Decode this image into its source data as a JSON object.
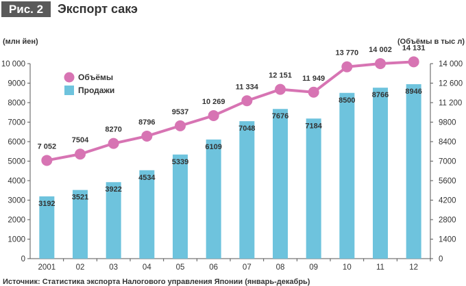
{
  "figure": {
    "badge": "Рис. 2",
    "title": "Экспорт сакэ"
  },
  "colors": {
    "bar": "#6ec3dd",
    "line": "#d774b3",
    "axis": "#555555",
    "text": "#333333"
  },
  "chart_data": {
    "type": "bar+line",
    "categories": [
      "2001",
      "02",
      "03",
      "04",
      "05",
      "06",
      "07",
      "08",
      "09",
      "10",
      "11",
      "12"
    ],
    "series": [
      {
        "name": "Продажи",
        "type": "bar",
        "axis": "left",
        "values": [
          3192,
          3521,
          3922,
          4534,
          5339,
          6109,
          7048,
          7676,
          7184,
          8500,
          8766,
          8946
        ],
        "labels": [
          "3192",
          "3521",
          "3922",
          "4534",
          "5339",
          "6109",
          "7048",
          "7676",
          "7184",
          "8500",
          "8766",
          "8946"
        ]
      },
      {
        "name": "Объёмы",
        "type": "line",
        "axis": "right",
        "values": [
          7052,
          7504,
          8270,
          8796,
          9537,
          10269,
          11334,
          12151,
          11949,
          13770,
          14002,
          14131
        ],
        "labels": [
          "7 052",
          "7504",
          "8270",
          "8796",
          "9537",
          "10 269",
          "11 334",
          "12 151",
          "11 949",
          "13 770",
          "14 002",
          "14 131"
        ]
      }
    ],
    "ylabel_left": "(млн йен)",
    "ylabel_right": "(Объёмы в тыс л)",
    "ylim_left": [
      0,
      10000
    ],
    "ylim_right": [
      0,
      14000
    ],
    "yticks_left": [
      "0",
      "1000",
      "2000",
      "3000",
      "4000",
      "5000",
      "6000",
      "7000",
      "8000",
      "9000",
      "10 000"
    ],
    "yticks_right": [
      "0",
      "1400",
      "2800",
      "4200",
      "5600",
      "7000",
      "8400",
      "9800",
      "11 200",
      "12 600",
      "14 000"
    ],
    "legend": {
      "position": "top-left",
      "items": [
        "Объёмы",
        "Продажи"
      ]
    },
    "grid": false,
    "source": "Источник: Статистика экспорта Налогового управления Японии (январь-декабрь)"
  }
}
